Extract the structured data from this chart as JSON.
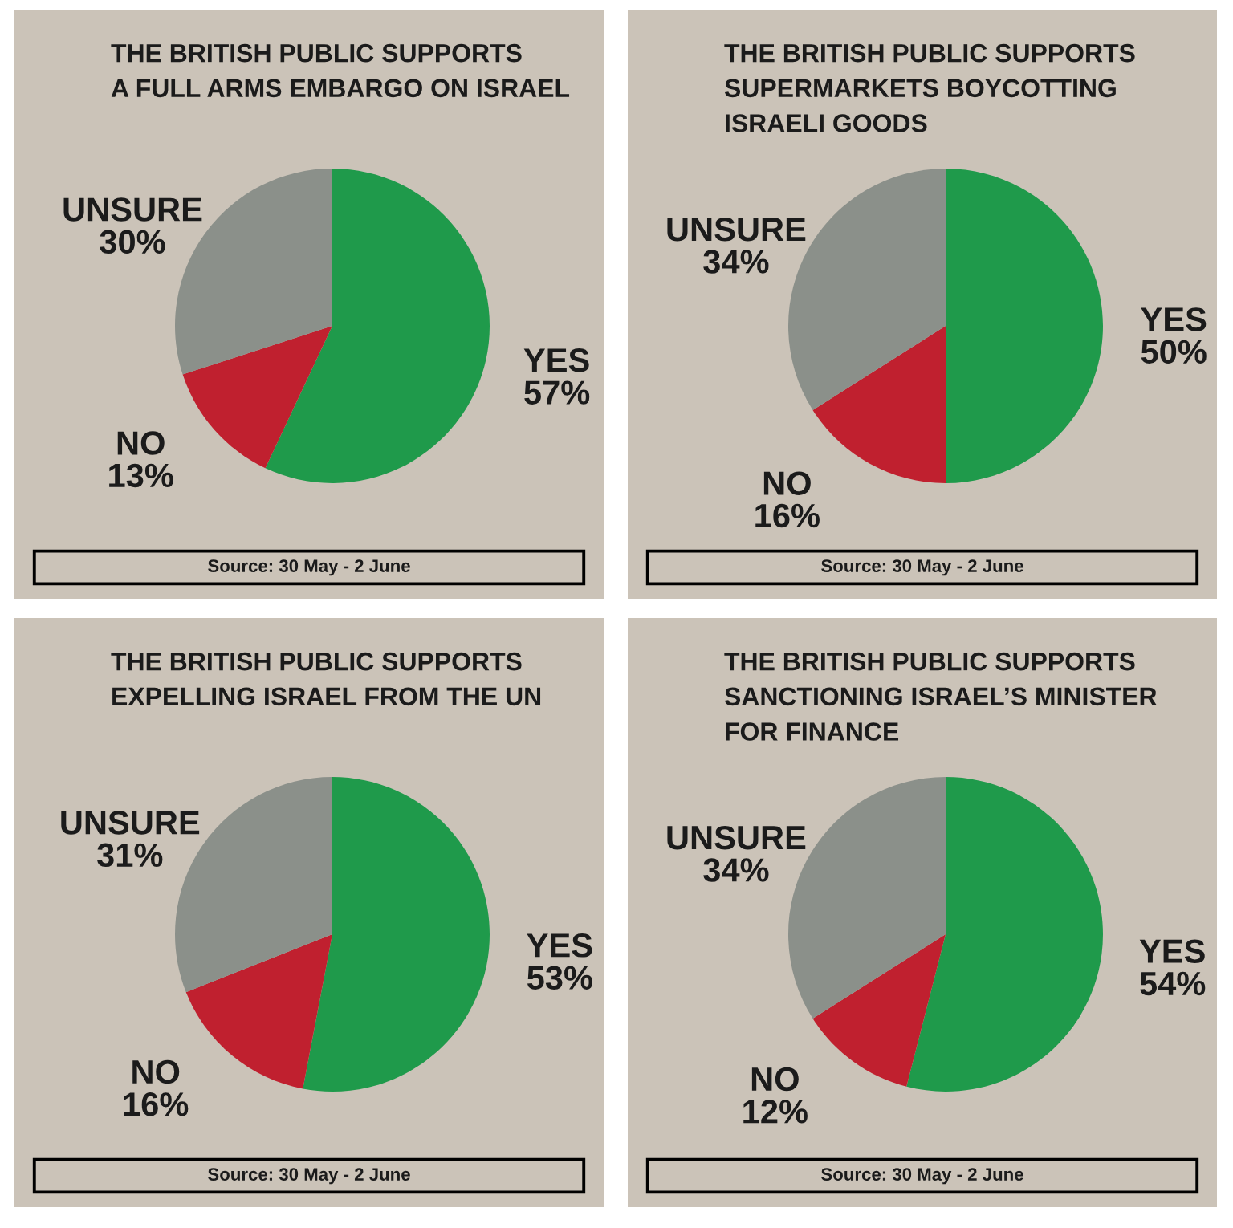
{
  "chart_data": [
    {
      "type": "pie",
      "title": "THE BRITISH PUBLIC SUPPORTS\nA FULL ARMS EMBARGO ON ISRAEL",
      "categories": [
        "YES",
        "NO",
        "UNSURE"
      ],
      "values": [
        57,
        13,
        30
      ],
      "colors": [
        "#1f9a4b",
        "#c0202f",
        "#8b908a"
      ],
      "value_labels": [
        "57%",
        "13%",
        "30%"
      ],
      "annotations": [
        "Source: 30 May - 2 June"
      ]
    },
    {
      "type": "pie",
      "title": "THE BRITISH PUBLIC SUPPORTS\nSUPERMARKETS BOYCOTTING\nISRAELI GOODS",
      "categories": [
        "YES",
        "NO",
        "UNSURE"
      ],
      "values": [
        50,
        16,
        34
      ],
      "colors": [
        "#1f9a4b",
        "#c0202f",
        "#8b908a"
      ],
      "value_labels": [
        "50%",
        "16%",
        "34%"
      ],
      "annotations": [
        "Source: 30 May - 2 June"
      ]
    },
    {
      "type": "pie",
      "title": "THE BRITISH PUBLIC SUPPORTS\nEXPELLING ISRAEL FROM THE UN",
      "categories": [
        "YES",
        "NO",
        "UNSURE"
      ],
      "values": [
        53,
        16,
        31
      ],
      "colors": [
        "#1f9a4b",
        "#c0202f",
        "#8b908a"
      ],
      "value_labels": [
        "53%",
        "16%",
        "31%"
      ],
      "annotations": [
        "Source: 30 May - 2 June"
      ]
    },
    {
      "type": "pie",
      "title": "THE BRITISH PUBLIC SUPPORTS\nSANCTIONING ISRAEL’S MINISTER\nFOR FINANCE",
      "categories": [
        "YES",
        "NO",
        "UNSURE"
      ],
      "values": [
        54,
        12,
        34
      ],
      "colors": [
        "#1f9a4b",
        "#c0202f",
        "#8b908a"
      ],
      "value_labels": [
        "54%",
        "12%",
        "34%"
      ],
      "annotations": [
        "Source: 30 May - 2 June"
      ]
    }
  ]
}
